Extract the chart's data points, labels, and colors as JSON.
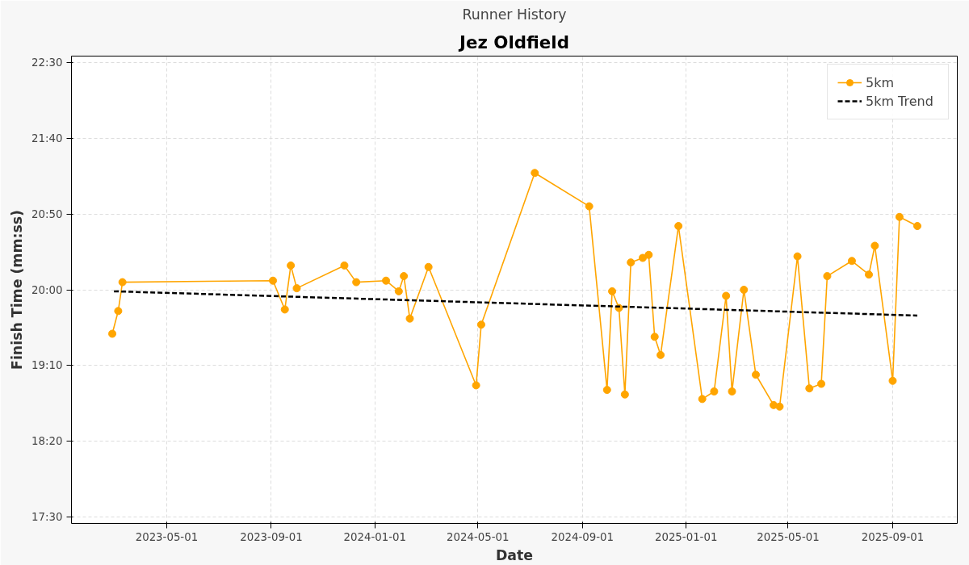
{
  "chart_data": {
    "type": "line",
    "title": "Jez Oldfield",
    "subtitle": "Runner History",
    "xlabel": "Date",
    "ylabel": "Finish Time (mm:ss)",
    "xlim": [
      "2023-01-09",
      "2025-11-16"
    ],
    "xticks": [
      "2023-05-01",
      "2023-09-01",
      "2024-01-01",
      "2024-05-01",
      "2024-09-01",
      "2025-01-01",
      "2025-05-01",
      "2025-09-01"
    ],
    "ylim": [
      1046,
      1354
    ],
    "yticks": [
      {
        "value": 1050,
        "label": "17:30"
      },
      {
        "value": 1100,
        "label": "18:20"
      },
      {
        "value": 1150,
        "label": "19:10"
      },
      {
        "value": 1200,
        "label": "20:00"
      },
      {
        "value": 1250,
        "label": "20:50"
      },
      {
        "value": 1300,
        "label": "21:40"
      },
      {
        "value": 1350,
        "label": "22:30"
      }
    ],
    "grid": true,
    "legend": "top right",
    "series": [
      {
        "name": "5km",
        "color": "#ffa500",
        "marker": "circle",
        "line_style": "solid",
        "x": [
          "2023-02-26",
          "2023-03-05",
          "2023-03-10",
          "2023-09-03",
          "2023-09-17",
          "2023-09-24",
          "2023-10-01",
          "2023-11-26",
          "2023-12-10",
          "2024-01-14",
          "2024-01-29",
          "2024-02-04",
          "2024-02-11",
          "2024-03-04",
          "2024-04-29",
          "2024-05-05",
          "2024-07-07",
          "2024-09-09",
          "2024-09-30",
          "2024-10-06",
          "2024-10-14",
          "2024-10-21",
          "2024-10-28",
          "2024-11-11",
          "2024-11-18",
          "2024-11-25",
          "2024-12-02",
          "2024-12-23",
          "2025-01-20",
          "2025-02-03",
          "2025-02-17",
          "2025-02-24",
          "2025-03-10",
          "2025-03-24",
          "2025-04-14",
          "2025-04-21",
          "2025-05-12",
          "2025-05-26",
          "2025-06-09",
          "2025-06-16",
          "2025-07-15",
          "2025-08-04",
          "2025-08-11",
          "2025-09-01",
          "2025-09-09",
          "2025-09-30"
        ],
        "values": [
          1171,
          1186,
          1205,
          1206,
          1187,
          1216,
          1201,
          1216,
          1205,
          1206,
          1199,
          1209,
          1181,
          1215,
          1137,
          1177,
          1277,
          1255,
          1134,
          1199,
          1188,
          1131,
          1218,
          1221,
          1223,
          1169,
          1157,
          1242,
          1128,
          1133,
          1196,
          1133,
          1200,
          1144,
          1124,
          1123,
          1222,
          1135,
          1138,
          1209,
          1219,
          1210,
          1229,
          1140,
          1248,
          1242
        ]
      },
      {
        "name": "5km Trend",
        "color": "#000000",
        "marker": "none",
        "line_style": "dashed",
        "x": [
          "2023-02-28",
          "2025-09-30"
        ],
        "values": [
          1199,
          1183
        ]
      }
    ]
  }
}
